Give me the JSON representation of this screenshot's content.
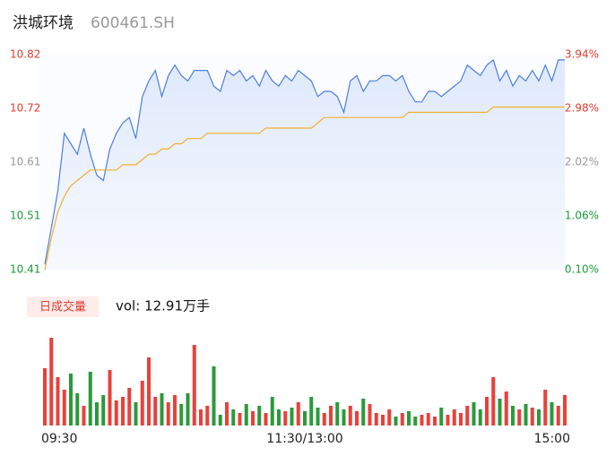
{
  "header": {
    "title": "洪城环境",
    "code": "600461.SH"
  },
  "chart_data": {
    "type": "line",
    "x": [
      0,
      3,
      6,
      9,
      12,
      15,
      18,
      21,
      24,
      27,
      30,
      33,
      36,
      39,
      42,
      45,
      48,
      51,
      54,
      57,
      60,
      63,
      66,
      69,
      72,
      75,
      78,
      81,
      84,
      87,
      90,
      93,
      96,
      99,
      102,
      105,
      108,
      111,
      114,
      117,
      120,
      123,
      126,
      129,
      132,
      135,
      138,
      141,
      144,
      147,
      150,
      153,
      156,
      159,
      162,
      165,
      168,
      171,
      174,
      177,
      180,
      183,
      186,
      189,
      192,
      195,
      198,
      201,
      204,
      207,
      210,
      213,
      216,
      219,
      222,
      225,
      228,
      231,
      234,
      237,
      240
    ],
    "xlim": [
      0,
      240
    ],
    "xticks": [
      {
        "value": 0,
        "label": "09:30"
      },
      {
        "value": 120,
        "label": "11:30/13:00"
      },
      {
        "value": 240,
        "label": "15:00"
      }
    ],
    "ylim": [
      10.41,
      10.82
    ],
    "yticks": [
      {
        "value": 10.82,
        "label": "10.82"
      },
      {
        "value": 10.7175,
        "label": "10.72"
      },
      {
        "value": 10.615,
        "label": "10.61"
      },
      {
        "value": 10.5125,
        "label": "10.51"
      },
      {
        "value": 10.41,
        "label": "10.41"
      }
    ],
    "y2lim": [
      0.1,
      3.94
    ],
    "y2ticks": [
      {
        "value": 3.94,
        "label": "3.94%"
      },
      {
        "value": 2.98,
        "label": "2.98%"
      },
      {
        "value": 2.02,
        "label": "2.02%"
      },
      {
        "value": 1.06,
        "label": "1.06%"
      },
      {
        "value": 0.1,
        "label": "0.10%"
      }
    ],
    "ytick_colors": [
      "#e03c31",
      "#e03c31",
      "#999999",
      "#1a9a3a",
      "#1a9a3a"
    ],
    "series": [
      {
        "name": "price",
        "color": "#4a7fe0",
        "values": [
          10.42,
          10.49,
          10.56,
          10.67,
          10.65,
          10.63,
          10.68,
          10.63,
          10.59,
          10.58,
          10.64,
          10.67,
          10.69,
          10.7,
          10.66,
          10.74,
          10.77,
          10.79,
          10.74,
          10.78,
          10.8,
          10.78,
          10.77,
          10.79,
          10.79,
          10.79,
          10.76,
          10.75,
          10.79,
          10.78,
          10.79,
          10.77,
          10.78,
          10.76,
          10.79,
          10.77,
          10.76,
          10.78,
          10.77,
          10.79,
          10.78,
          10.77,
          10.74,
          10.75,
          10.75,
          10.74,
          10.71,
          10.77,
          10.78,
          10.75,
          10.77,
          10.77,
          10.78,
          10.78,
          10.77,
          10.78,
          10.75,
          10.73,
          10.73,
          10.75,
          10.75,
          10.74,
          10.75,
          10.76,
          10.77,
          10.8,
          10.79,
          10.78,
          10.8,
          10.81,
          10.77,
          10.79,
          10.76,
          10.78,
          10.77,
          10.79,
          10.77,
          10.8,
          10.77,
          10.81,
          10.81
        ]
      },
      {
        "name": "average",
        "color": "#f0b030",
        "values": [
          10.41,
          10.47,
          10.52,
          10.55,
          10.57,
          10.58,
          10.59,
          10.6,
          10.6,
          10.6,
          10.6,
          10.6,
          10.61,
          10.61,
          10.61,
          10.62,
          10.63,
          10.63,
          10.64,
          10.64,
          10.65,
          10.65,
          10.66,
          10.66,
          10.66,
          10.67,
          10.67,
          10.67,
          10.67,
          10.67,
          10.67,
          10.67,
          10.67,
          10.67,
          10.68,
          10.68,
          10.68,
          10.68,
          10.68,
          10.68,
          10.68,
          10.68,
          10.69,
          10.7,
          10.7,
          10.7,
          10.7,
          10.7,
          10.7,
          10.7,
          10.7,
          10.7,
          10.7,
          10.7,
          10.7,
          10.7,
          10.71,
          10.71,
          10.71,
          10.71,
          10.71,
          10.71,
          10.71,
          10.71,
          10.71,
          10.71,
          10.71,
          10.71,
          10.71,
          10.72,
          10.72,
          10.72,
          10.72,
          10.72,
          10.72,
          10.72,
          10.72,
          10.72,
          10.72,
          10.72,
          10.72
        ]
      }
    ],
    "volume": {
      "label": "日成交量",
      "total": "vol: 12.91万手",
      "ylim": [
        0,
        5000
      ],
      "values": [
        3200,
        4900,
        2700,
        2000,
        2900,
        1800,
        1100,
        3000,
        1300,
        1700,
        3100,
        1400,
        1600,
        2100,
        1300,
        2500,
        3800,
        1600,
        1800,
        1300,
        1700,
        1200,
        1800,
        4500,
        900,
        1100,
        3300,
        600,
        1300,
        900,
        700,
        1200,
        800,
        1100,
        700,
        1600,
        900,
        800,
        1000,
        1300,
        800,
        1600,
        1000,
        700,
        1100,
        1300,
        900,
        1100,
        800,
        1500,
        1200,
        700,
        600,
        900,
        500,
        700,
        800,
        500,
        600,
        700,
        500,
        1000,
        600,
        900,
        700,
        1100,
        1300,
        900,
        1600,
        2700,
        1500,
        1900,
        1100,
        900,
        1200,
        1000,
        900,
        2000,
        1300,
        1100,
        1700
      ]
    }
  }
}
